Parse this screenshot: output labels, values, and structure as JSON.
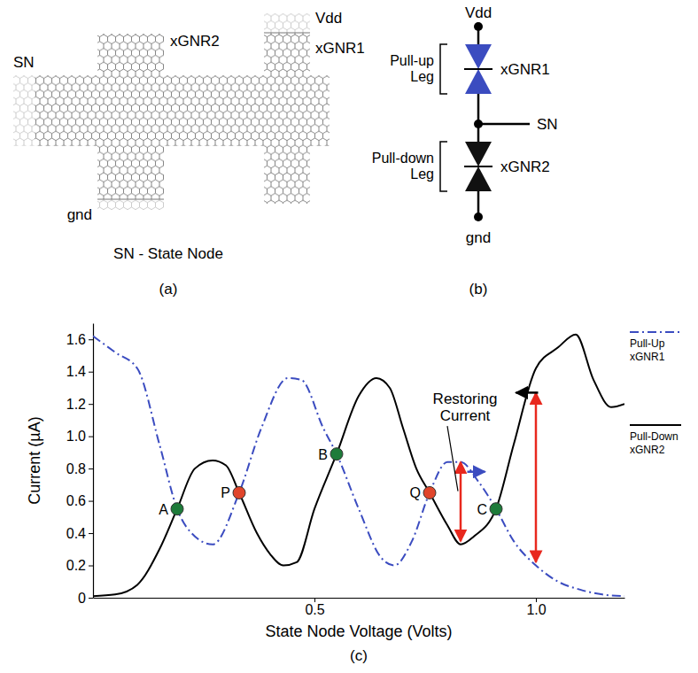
{
  "layout_panel": {
    "labels": [
      "SN",
      "xGNR2",
      "xGNR1",
      "Vdd",
      "gnd"
    ],
    "caption": "SN - State Node"
  },
  "schematic_panel": {
    "labels": [
      "Vdd",
      "xGNR1",
      "SN",
      "xGNR2",
      "gnd"
    ],
    "legs": [
      "Pull-up Leg",
      "Pull-down Leg"
    ]
  },
  "panel_letters": [
    "(a)",
    "(b)",
    "(c)"
  ],
  "chart_data": {
    "type": "line",
    "x_label": "State Node Voltage (Volts)",
    "y_label": "Current (µA)",
    "xlim": [
      0,
      1.2
    ],
    "xticks": [
      0.5,
      {
        "value": 1,
        "label": "1.0"
      }
    ],
    "ylim": [
      0,
      1.7
    ],
    "yticks": [
      0,
      0.2,
      0.4,
      0.6,
      0.8,
      {
        "value": 1,
        "label": "1.0"
      },
      1.2,
      1.4,
      1.6
    ],
    "grid": false,
    "legend": "right",
    "series": [
      {
        "name": "Pull-Up xGNR1",
        "color": "#3b4cc0",
        "line_style": "dashdot",
        "x": [
          0,
          0.05,
          0.1,
          0.15,
          0.19,
          0.23,
          0.27,
          0.33,
          0.38,
          0.44,
          0.47,
          0.52,
          0.55,
          0.6,
          0.65,
          0.68,
          0.72,
          0.76,
          0.8,
          0.83,
          0.87,
          0.91,
          0.95,
          1.0,
          1.05,
          1.1,
          1.15,
          1.2
        ],
        "values": [
          1.62,
          1.52,
          1.42,
          0.95,
          0.55,
          0.38,
          0.33,
          0.65,
          1.05,
          1.36,
          1.35,
          1.05,
          0.89,
          0.55,
          0.25,
          0.2,
          0.35,
          0.65,
          0.84,
          0.84,
          0.72,
          0.55,
          0.35,
          0.2,
          0.1,
          0.05,
          0.02,
          0.01
        ]
      },
      {
        "name": "Pull-Down xGNR2",
        "color": "#000000",
        "line_style": "solid",
        "x": [
          0,
          0.05,
          0.1,
          0.15,
          0.19,
          0.23,
          0.27,
          0.3,
          0.33,
          0.37,
          0.4,
          0.43,
          0.46,
          0.5,
          0.55,
          0.6,
          0.64,
          0.67,
          0.7,
          0.73,
          0.76,
          0.8,
          0.83,
          0.86,
          0.91,
          0.95,
          1.0,
          1.05,
          1.09,
          1.13,
          1.17,
          1.2
        ],
        "values": [
          0.01,
          0.02,
          0.08,
          0.3,
          0.55,
          0.8,
          0.85,
          0.82,
          0.65,
          0.4,
          0.27,
          0.2,
          0.22,
          0.55,
          0.89,
          1.25,
          1.36,
          1.3,
          1.05,
          0.8,
          0.65,
          0.45,
          0.33,
          0.38,
          0.55,
          0.95,
          1.42,
          1.55,
          1.63,
          1.35,
          1.18,
          1.2
        ]
      }
    ],
    "points": [
      {
        "label": "A",
        "x": 0.19,
        "y": 0.55,
        "color": "#1e7b3a"
      },
      {
        "label": "P",
        "x": 0.33,
        "y": 0.65,
        "color": "#e0452b"
      },
      {
        "label": "B",
        "x": 0.55,
        "y": 0.89,
        "color": "#1e7b3a"
      },
      {
        "label": "Q",
        "x": 0.76,
        "y": 0.65,
        "color": "#e0452b"
      },
      {
        "label": "C",
        "x": 0.91,
        "y": 0.55,
        "color": "#1e7b3a"
      }
    ],
    "annotation": "Restoring Current",
    "restoring_arrows": [
      {
        "x": 0.83,
        "y": [
          0.35,
          0.84
        ]
      },
      {
        "x": 1.0,
        "y": [
          0.22,
          1.27
        ]
      }
    ],
    "direction_arrows": [
      {
        "x": [
          0.845,
          0.885
        ],
        "y": 0.78,
        "color": "#3b4cc0"
      },
      {
        "x": [
          1.005,
          0.955
        ],
        "y": 1.27,
        "color": "#000000"
      }
    ]
  }
}
